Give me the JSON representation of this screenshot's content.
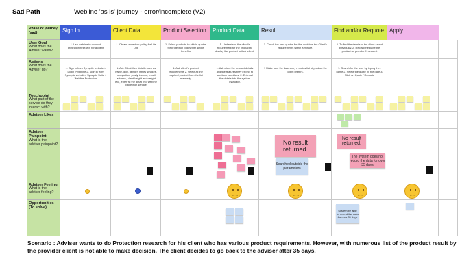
{
  "header": {
    "title": "Sad Path",
    "subtitle": "Webline 'as is' journey - error/incomplete (V2)"
  },
  "table": {
    "corner": "Phase of journey (sad)",
    "rows": [
      {
        "label": "User Goal",
        "question": "What does the Adviser wants?"
      },
      {
        "label": "Actions",
        "question": "What does the Adviser do?"
      },
      {
        "label": "Touchpoint",
        "question": "What part of the service do they interact with?"
      },
      {
        "label": "Adviser Likes"
      },
      {
        "label": "Adviser Painpoint",
        "question": "What is the adviser painpoint?"
      },
      {
        "label": "Adviser Feeling",
        "question": "What is the adviser feeling?"
      },
      {
        "label": "Opportunities (To solve)"
      }
    ],
    "phases": [
      {
        "name": "Sign In",
        "goal": "1. Use webline to conduct protection research for a client",
        "action": "1. Sign in from Synaptic website > Login >Webline 2. Sign in from Synaptic website> Synaptic Suite > Webline Protection"
      },
      {
        "name": "Client Data",
        "goal": "1. Obtain protection policy for Life One",
        "action": "1. Ask Client their details such as name, dob, gender, if they smokes, occupation, yearly income, email address, client height and weight etc., enter all the detail into webline protection service"
      },
      {
        "name": "Product Selection",
        "goal": "1. Select products to obtain quotes for protection policy with single benefits",
        "action": "1. Ask client's product requirements 2. select all the required product from the list manually."
      },
      {
        "name": "Product Data",
        "goal": "1. Understand the client's requirement for the product to display the product to their client.",
        "action": "1. Ask client the product details and the features they expect to see from providers. 2. Enter all the details into the system manually."
      },
      {
        "name": "Result",
        "goal": "1. Check the best quotes for that matches the Client's requirements within a minute.",
        "action": "1 Make sure the data entry remains list of product the client prefers.",
        "painpoints": [
          "No result returned.",
          "Searched outside the parameters"
        ]
      },
      {
        "name": "Find and/or Requote",
        "goal": "1. To find the details of the client saved previously. 2. Reload/ Requote the product as per client's request",
        "action": "1. Search for the user by typing their name 2. Select the quote by the date 3. Click on Quote / Requote",
        "painpoints": [
          "No result returned.",
          "The system does not record the data for over 35 days"
        ],
        "opportunity": "System be able to record the data for over 35 days"
      },
      {
        "name": "Apply"
      }
    ]
  },
  "scenario": "Scenario : Adviser wants to do Protection research for his client who has various product requirements. However, with numerous list of the product result by the provider client is not able to make decision. The client decides to go back to the adviser after 35  days."
}
